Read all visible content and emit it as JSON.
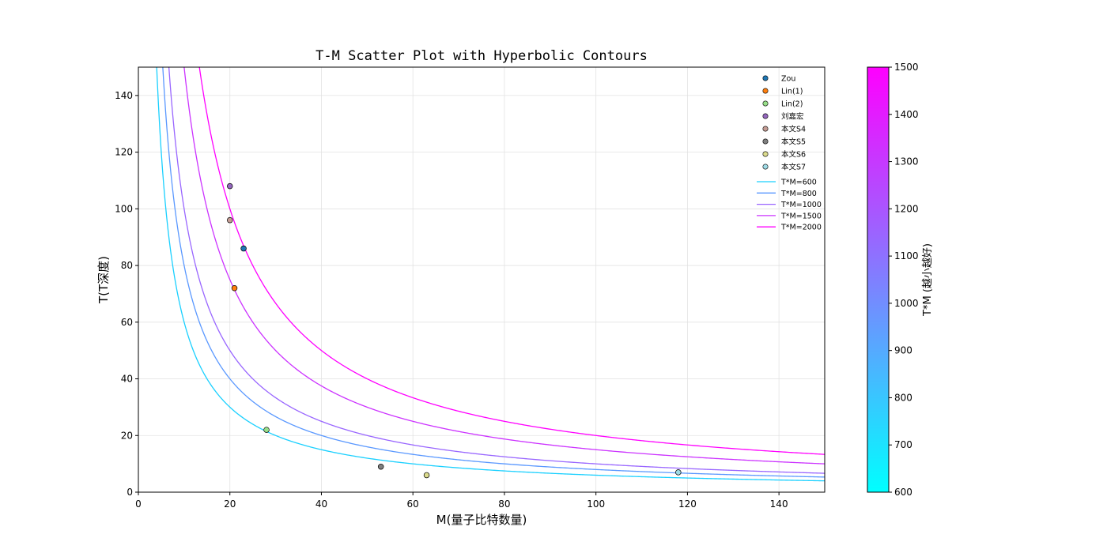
{
  "chart_data": {
    "type": "scatter",
    "title": "T-M Scatter Plot with Hyperbolic Contours",
    "xlabel": "M(量子比特数量)",
    "ylabel": "T(T深度)",
    "xlim": [
      0,
      150
    ],
    "ylim": [
      0,
      150
    ],
    "xticks": [
      0,
      20,
      40,
      60,
      80,
      100,
      120,
      140
    ],
    "yticks": [
      0,
      20,
      40,
      60,
      80,
      100,
      120,
      140
    ],
    "grid": true,
    "legend_position": "top-right",
    "points": [
      {
        "name": "Zou",
        "x": 23,
        "y": 86,
        "color": "#1f77b4"
      },
      {
        "name": "Lin(1)",
        "x": 21,
        "y": 72,
        "color": "#ff7f0e"
      },
      {
        "name": "Lin(2)",
        "x": 28,
        "y": 22,
        "color": "#98df8a"
      },
      {
        "name": "刘嘉宏",
        "x": 20,
        "y": 108,
        "color": "#9467bd"
      },
      {
        "name": "本文S4",
        "x": 20,
        "y": 96,
        "color": "#c49c94"
      },
      {
        "name": "本文S5",
        "x": 53,
        "y": 9,
        "color": "#7f7f7f"
      },
      {
        "name": "本文S6",
        "x": 63,
        "y": 6,
        "color": "#dbdb8d"
      },
      {
        "name": "本文S7",
        "x": 118,
        "y": 7,
        "color": "#9edae5"
      }
    ],
    "contours": [
      {
        "name": "T*M=600",
        "k": 600,
        "color": "#1ad0ff"
      },
      {
        "name": "T*M=800",
        "k": 800,
        "color": "#5a98ff"
      },
      {
        "name": "T*M=1000",
        "k": 1000,
        "color": "#9966ff"
      },
      {
        "name": "T*M=1500",
        "k": 1500,
        "color": "#cc33ff"
      },
      {
        "name": "T*M=2000",
        "k": 2000,
        "color": "#ff00ff"
      }
    ],
    "colorbar": {
      "label": "T*M (越小越好)",
      "range": [
        600,
        1500
      ],
      "ticks": [
        600,
        700,
        800,
        900,
        1000,
        1100,
        1200,
        1300,
        1400,
        1500
      ],
      "colormap": "cool",
      "color_low": "#00ffff",
      "color_high": "#ff00ff"
    }
  }
}
